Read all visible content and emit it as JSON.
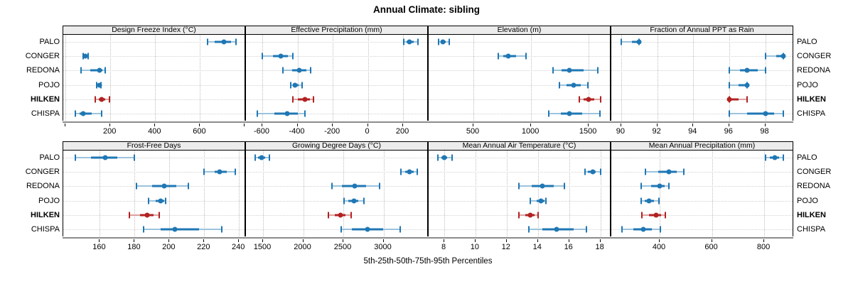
{
  "title": "Annual Climate: sibling",
  "xlabel": "5th-25th-50th-75th-95th Percentiles",
  "colors": {
    "series": "#1f77b4",
    "series_light": "#9cc3dd",
    "highlight": "#b22222",
    "highlight_light": "#dca0a0",
    "strip_bg": "#ececec",
    "grid": "#bdbdbd",
    "axis_line": "#8c8c8c"
  },
  "chart_data": {
    "type": "dot-whisker percentile panel plot",
    "title": "Annual Climate: sibling",
    "xlabel": "5th-25th-50th-75th-95th Percentiles",
    "percentiles": [
      5,
      25,
      50,
      75,
      95
    ],
    "sites": [
      "PALO",
      "CONGER",
      "REDONA",
      "POJO",
      "HILKEN",
      "CHISPA"
    ],
    "highlight_site": "HILKEN",
    "legend": "none",
    "grid": "dotted",
    "panels": [
      {
        "title": "Design Freeze Index (°C)",
        "row": 0,
        "col": 0,
        "xmin": -10,
        "xmax": 805,
        "ticks": [
          {
            "v": 0,
            "label": ""
          },
          {
            "v": 200,
            "label": "200"
          },
          {
            "v": 400,
            "label": "400"
          },
          {
            "v": 600,
            "label": "600"
          },
          {
            "v": 800,
            "label": ""
          }
        ],
        "values": [
          [
            635,
            665,
            705,
            738,
            760
          ],
          [
            78,
            84,
            88,
            93,
            101
          ],
          [
            70,
            112,
            152,
            166,
            178
          ],
          [
            139,
            145,
            150,
            154,
            158
          ],
          [
            132,
            150,
            161,
            176,
            196
          ],
          [
            44,
            62,
            79,
            118,
            160
          ]
        ]
      },
      {
        "title": "Effective Precipitation (mm)",
        "row": 0,
        "col": 1,
        "xmin": -693,
        "xmax": 345,
        "ticks": [
          {
            "v": -600,
            "label": "-600"
          },
          {
            "v": -400,
            "label": "-400"
          },
          {
            "v": -200,
            "label": "-200"
          },
          {
            "v": 0,
            "label": "0"
          },
          {
            "v": 200,
            "label": "200"
          }
        ],
        "values": [
          [
            205,
            218,
            235,
            262,
            285
          ],
          [
            -600,
            -540,
            -497,
            -455,
            -425
          ],
          [
            -485,
            -430,
            -390,
            -350,
            -325
          ],
          [
            -440,
            -428,
            -415,
            -396,
            -376
          ],
          [
            -428,
            -400,
            -357,
            -330,
            -311
          ],
          [
            -630,
            -530,
            -460,
            -400,
            -356
          ]
        ]
      },
      {
        "title": "Elevation (m)",
        "row": 0,
        "col": 2,
        "xmin": 111,
        "xmax": 1697,
        "ticks": [
          {
            "v": 500,
            "label": "500"
          },
          {
            "v": 1000,
            "label": "1000"
          },
          {
            "v": 1500,
            "label": "1500"
          }
        ],
        "values": [
          [
            197,
            214,
            233,
            259,
            290
          ],
          [
            716,
            757,
            801,
            868,
            956
          ],
          [
            1191,
            1268,
            1334,
            1455,
            1580
          ],
          [
            1247,
            1308,
            1370,
            1432,
            1494
          ],
          [
            1419,
            1458,
            1501,
            1550,
            1605
          ],
          [
            1155,
            1258,
            1334,
            1442,
            1598
          ]
        ]
      },
      {
        "title": "Fraction of Annual PPT as Rain",
        "row": 0,
        "col": 3,
        "xmin": 89.45,
        "xmax": 99.6,
        "ticks": [
          {
            "v": 90,
            "label": "90"
          },
          {
            "v": 92,
            "label": "92"
          },
          {
            "v": 94,
            "label": "94"
          },
          {
            "v": 96,
            "label": "96"
          },
          {
            "v": 98,
            "label": "98"
          }
        ],
        "values": [
          [
            90,
            90.6,
            91,
            91,
            91
          ],
          [
            98,
            98.6,
            99,
            99,
            99
          ],
          [
            96,
            96.6,
            97,
            97.6,
            98
          ],
          [
            96,
            96.5,
            97,
            97,
            97
          ],
          [
            96,
            96,
            96,
            96.5,
            97
          ],
          [
            96,
            97,
            98,
            98.5,
            99
          ]
        ]
      },
      {
        "title": "Frost-Free Days",
        "row": 1,
        "col": 0,
        "xmin": 139,
        "xmax": 244,
        "ticks": [
          {
            "v": 160,
            "label": "160"
          },
          {
            "v": 180,
            "label": "180"
          },
          {
            "v": 200,
            "label": "200"
          },
          {
            "v": 220,
            "label": "220"
          },
          {
            "v": 240,
            "label": "240"
          }
        ],
        "values": [
          [
            146,
            155,
            163,
            170,
            180
          ],
          [
            220,
            226,
            229,
            233,
            238
          ],
          [
            181,
            190,
            197,
            204,
            211
          ],
          [
            188,
            192,
            195,
            197,
            198
          ],
          [
            177,
            183,
            187,
            191,
            194
          ],
          [
            185,
            195,
            203,
            217,
            230
          ]
        ]
      },
      {
        "title": "Growing Degree Days (°C)",
        "row": 1,
        "col": 1,
        "xmin": 1288,
        "xmax": 3562,
        "ticks": [
          {
            "v": 1500,
            "label": "1500"
          },
          {
            "v": 2000,
            "label": "2000"
          },
          {
            "v": 2500,
            "label": "2500"
          },
          {
            "v": 3000,
            "label": "3000"
          }
        ],
        "values": [
          [
            1400,
            1442,
            1481,
            1526,
            1580
          ],
          [
            3220,
            3270,
            3322,
            3372,
            3420
          ],
          [
            2360,
            2480,
            2640,
            2780,
            2950
          ],
          [
            2505,
            2560,
            2630,
            2690,
            2757
          ],
          [
            2315,
            2390,
            2468,
            2530,
            2595
          ],
          [
            2470,
            2610,
            2805,
            3000,
            3205
          ]
        ]
      },
      {
        "title": "Mean Annual Air Temperature (°C)",
        "row": 1,
        "col": 2,
        "xmin": 7.0,
        "xmax": 18.7,
        "ticks": [
          {
            "v": 8,
            "label": "8"
          },
          {
            "v": 10,
            "label": "10"
          },
          {
            "v": 12,
            "label": "12"
          },
          {
            "v": 14,
            "label": "14"
          },
          {
            "v": 16,
            "label": "16"
          },
          {
            "v": 18,
            "label": "18"
          }
        ],
        "values": [
          [
            7.6,
            7.8,
            8.0,
            8.2,
            8.5
          ],
          [
            17.0,
            17.2,
            17.5,
            17.7,
            18.0
          ],
          [
            12.8,
            13.6,
            14.3,
            15.0,
            15.7
          ],
          [
            13.5,
            13.9,
            14.2,
            14.4,
            14.5
          ],
          [
            12.8,
            13.2,
            13.5,
            13.8,
            14.0
          ],
          [
            13.4,
            14.3,
            15.2,
            16.3,
            17.1
          ]
        ]
      },
      {
        "title": "Mean Annual Precipitation (mm)",
        "row": 1,
        "col": 3,
        "xmin": 215,
        "xmax": 914,
        "ticks": [
          {
            "v": 400,
            "label": "400"
          },
          {
            "v": 600,
            "label": "600"
          },
          {
            "v": 800,
            "label": "800"
          }
        ],
        "values": [
          [
            805,
            822,
            840,
            856,
            874
          ],
          [
            345,
            395,
            435,
            465,
            492
          ],
          [
            330,
            368,
            400,
            420,
            436
          ],
          [
            329,
            344,
            360,
            379,
            396
          ],
          [
            331,
            360,
            385,
            405,
            421
          ],
          [
            256,
            300,
            336,
            370,
            402
          ]
        ]
      }
    ]
  }
}
